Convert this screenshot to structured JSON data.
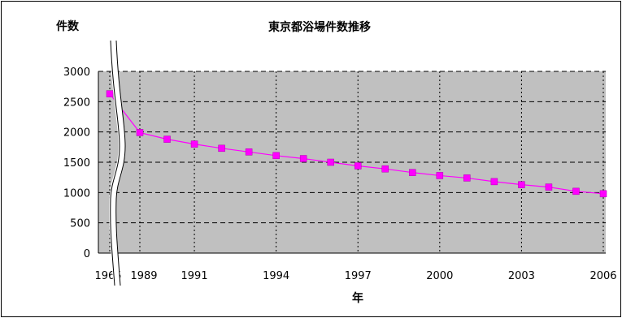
{
  "chart_data": {
    "type": "line",
    "title": "東京都浴場件数推移",
    "ylabel": "件数",
    "xlabel": "年",
    "ylim": [
      0,
      3000
    ],
    "yticks": [
      0,
      500,
      1000,
      1500,
      2000,
      2500,
      3000
    ],
    "xtick_labels": [
      {
        "year": 1965,
        "label": "1965"
      },
      {
        "year": 1989,
        "label": "1989"
      },
      {
        "year": 1991,
        "label": "1991"
      },
      {
        "year": 1994,
        "label": "1994"
      },
      {
        "year": 1997,
        "label": "1997"
      },
      {
        "year": 2000,
        "label": "2000"
      },
      {
        "year": 2003,
        "label": "2003"
      },
      {
        "year": 2006,
        "label": "2006"
      }
    ],
    "axis_break": true,
    "plot_background": "#c0c0c0",
    "grid": true,
    "colors": {
      "series": "#ff00ff",
      "marker": "#ff00ff"
    },
    "series": [
      {
        "x": [
          1965,
          1989,
          1990,
          1991,
          1992,
          1993,
          1994,
          1995,
          1996,
          1997,
          1998,
          1999,
          2000,
          2001,
          2002,
          2003,
          2004,
          2005,
          2006
        ],
        "values": [
          2630,
          1990,
          1880,
          1800,
          1730,
          1670,
          1610,
          1560,
          1500,
          1440,
          1390,
          1330,
          1280,
          1240,
          1180,
          1130,
          1090,
          1020,
          980
        ]
      }
    ]
  }
}
